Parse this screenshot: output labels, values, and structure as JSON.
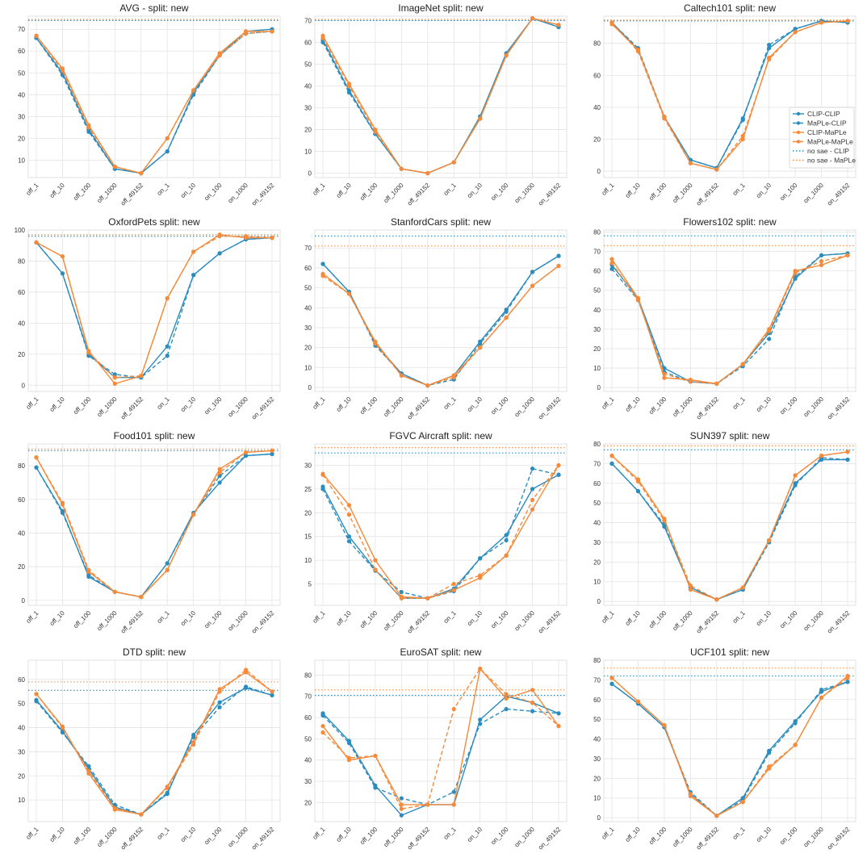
{
  "figure": {
    "x_categories": [
      "off_1",
      "off_10",
      "off_100",
      "off_1000",
      "off_49152",
      "on_1",
      "on_10",
      "on_100",
      "on_1000",
      "on_49152"
    ],
    "legend": {
      "entries": [
        {
          "label": "CLIP-CLIP",
          "style": "solid",
          "color": "#2b8cbe",
          "marker": true
        },
        {
          "label": "MaPLe-CLIP",
          "style": "dashed",
          "color": "#2b8cbe",
          "marker": true
        },
        {
          "label": "CLIP-MaPLe",
          "style": "solid",
          "color": "#f58a3a",
          "marker": true
        },
        {
          "label": "MaPLe-MaPLe",
          "style": "dashed",
          "color": "#f58a3a",
          "marker": true
        },
        {
          "label": "no sae - CLIP",
          "style": "dotted",
          "color": "#2b8cbe",
          "marker": false
        },
        {
          "label": "no sae - MaPLe",
          "style": "dotted",
          "color": "#f58a3a",
          "marker": false
        }
      ],
      "placement": "right, in Caltech101 panel"
    },
    "colors": {
      "clip": "#2b8cbe",
      "maple": "#f58a3a",
      "grid": "#e3e3e3"
    }
  },
  "chart_data": [
    {
      "type": "line",
      "title": "AVG - split: new",
      "ylim": [
        2,
        76
      ],
      "yticks": [
        10,
        20,
        30,
        40,
        50,
        60,
        70
      ],
      "series": [
        {
          "name": "CLIP-CLIP",
          "values": [
            66,
            50,
            24,
            6,
            4,
            14,
            41,
            58,
            69,
            70
          ]
        },
        {
          "name": "MaPLe-CLIP",
          "values": [
            66,
            49,
            23,
            6,
            4,
            14,
            40,
            58,
            68,
            69
          ]
        },
        {
          "name": "CLIP-MaPLe",
          "values": [
            67,
            52,
            26,
            7,
            4,
            20,
            42,
            59,
            69,
            69
          ]
        },
        {
          "name": "MaPLe-MaPLe",
          "values": [
            67,
            51,
            25,
            7,
            4,
            20,
            42,
            58,
            68,
            69
          ]
        }
      ],
      "baselines": {
        "no sae - CLIP": 74,
        "no sae - MaPLe": 74.5
      }
    },
    {
      "type": "line",
      "title": "ImageNet split: new",
      "ylim": [
        -2,
        72
      ],
      "yticks": [
        0,
        10,
        20,
        30,
        40,
        50,
        60,
        70
      ],
      "series": [
        {
          "name": "CLIP-CLIP",
          "values": [
            61,
            38,
            18,
            2,
            0,
            5,
            26,
            55,
            71,
            67
          ]
        },
        {
          "name": "MaPLe-CLIP",
          "values": [
            60,
            37,
            18,
            2,
            0,
            5,
            25,
            54,
            71,
            67
          ]
        },
        {
          "name": "CLIP-MaPLe",
          "values": [
            63,
            41,
            20,
            2,
            0,
            5,
            25,
            54,
            71,
            68
          ]
        },
        {
          "name": "MaPLe-MaPLe",
          "values": [
            62,
            40,
            19,
            2,
            0,
            5,
            25,
            54,
            71,
            68
          ]
        }
      ],
      "baselines": {
        "no sae - CLIP": 70,
        "no sae - MaPLe": 70.5
      }
    },
    {
      "type": "line",
      "title": "Caltech101 split: new",
      "ylim": [
        -4,
        97
      ],
      "yticks": [
        0,
        20,
        40,
        60,
        80
      ],
      "series": [
        {
          "name": "CLIP-CLIP",
          "values": [
            93,
            76,
            34,
            7,
            2,
            33,
            77,
            89,
            94,
            93
          ]
        },
        {
          "name": "MaPLe-CLIP",
          "values": [
            93,
            77,
            34,
            7,
            2,
            32,
            79,
            89,
            94,
            93
          ]
        },
        {
          "name": "CLIP-MaPLe",
          "values": [
            92,
            76,
            34,
            5,
            1,
            20,
            71,
            87,
            93,
            94
          ]
        },
        {
          "name": "MaPLe-MaPLe",
          "values": [
            93,
            75,
            33,
            5,
            1,
            22,
            70,
            87,
            93,
            94
          ]
        }
      ],
      "baselines": {
        "no sae - CLIP": 94,
        "no sae - MaPLe": 94.5
      }
    },
    {
      "type": "line",
      "title": "OxfordPets split: new",
      "ylim": [
        -4,
        100
      ],
      "yticks": [
        0,
        20,
        40,
        60,
        80,
        100
      ],
      "series": [
        {
          "name": "CLIP-CLIP",
          "values": [
            92,
            72,
            20,
            5,
            5,
            25,
            71,
            85,
            94,
            95
          ]
        },
        {
          "name": "MaPLe-CLIP",
          "values": [
            92,
            72,
            19,
            7,
            5,
            19,
            71,
            85,
            94,
            95
          ]
        },
        {
          "name": "CLIP-MaPLe",
          "values": [
            92,
            83,
            22,
            1,
            6,
            56,
            86,
            97,
            95,
            95
          ]
        },
        {
          "name": "MaPLe-MaPLe",
          "values": [
            92,
            83,
            21,
            5,
            6,
            56,
            86,
            96,
            96,
            95
          ]
        }
      ],
      "baselines": {
        "no sae - CLIP": 96,
        "no sae - MaPLe": 97
      }
    },
    {
      "type": "line",
      "title": "StanfordCars split: new",
      "ylim": [
        -2,
        79
      ],
      "yticks": [
        0,
        10,
        20,
        30,
        40,
        50,
        60,
        70
      ],
      "series": [
        {
          "name": "CLIP-CLIP",
          "values": [
            62,
            48,
            22,
            7,
            1,
            6,
            23,
            39,
            58,
            66
          ]
        },
        {
          "name": "MaPLe-CLIP",
          "values": [
            62,
            48,
            21,
            7,
            1,
            4,
            22,
            38,
            58,
            66
          ]
        },
        {
          "name": "CLIP-MaPLe",
          "values": [
            57,
            47,
            23,
            6,
            1,
            6,
            20,
            35,
            51,
            61
          ]
        },
        {
          "name": "MaPLe-MaPLe",
          "values": [
            56,
            47,
            22,
            6,
            1,
            5,
            20,
            35,
            51,
            61
          ]
        }
      ],
      "baselines": {
        "no sae - CLIP": 76,
        "no sae - MaPLe": 71
      }
    },
    {
      "type": "line",
      "title": "Flowers102 split: new",
      "ylim": [
        -2,
        81
      ],
      "yticks": [
        0,
        10,
        20,
        30,
        40,
        50,
        60,
        70,
        80
      ],
      "series": [
        {
          "name": "CLIP-CLIP",
          "values": [
            63,
            46,
            10,
            3,
            2,
            12,
            28,
            56,
            68,
            69
          ]
        },
        {
          "name": "MaPLe-CLIP",
          "values": [
            61,
            45,
            8,
            3,
            2,
            11,
            25,
            57,
            68,
            69
          ]
        },
        {
          "name": "CLIP-MaPLe",
          "values": [
            66,
            46,
            5,
            4,
            2,
            12,
            30,
            60,
            63,
            68
          ]
        },
        {
          "name": "MaPLe-MaPLe",
          "values": [
            64,
            45,
            7,
            3,
            2,
            12,
            29,
            59,
            65,
            68
          ]
        }
      ],
      "baselines": {
        "no sae - CLIP": 78,
        "no sae - MaPLe": 73
      }
    },
    {
      "type": "line",
      "title": "Food101 split: new",
      "ylim": [
        -3,
        93
      ],
      "yticks": [
        0,
        20,
        40,
        60,
        80
      ],
      "series": [
        {
          "name": "CLIP-CLIP",
          "values": [
            79,
            53,
            14,
            5,
            2,
            22,
            52,
            70,
            86,
            87
          ]
        },
        {
          "name": "MaPLe-CLIP",
          "values": [
            79,
            52,
            15,
            5,
            2,
            22,
            51,
            74,
            86,
            87
          ]
        },
        {
          "name": "CLIP-MaPLe",
          "values": [
            85,
            57,
            17,
            5,
            2,
            18,
            51,
            78,
            88,
            89
          ]
        },
        {
          "name": "MaPLe-MaPLe",
          "values": [
            85,
            58,
            18,
            5,
            2,
            18,
            51,
            76,
            88,
            89
          ]
        }
      ],
      "baselines": {
        "no sae - CLIP": 89,
        "no sae - MaPLe": 90
      }
    },
    {
      "type": "line",
      "title": "FGVC Aircraft split: new",
      "ylim": [
        0.5,
        34.5
      ],
      "yticks": [
        5,
        10,
        15,
        20,
        25,
        30
      ],
      "series": [
        {
          "name": "CLIP-CLIP",
          "values": [
            25.5,
            15,
            8,
            2,
            2,
            4,
            10.4,
            15.3,
            25,
            28
          ]
        },
        {
          "name": "MaPLe-CLIP",
          "values": [
            25,
            14,
            7.8,
            3.3,
            2,
            3.5,
            10.4,
            14.2,
            29.3,
            28
          ]
        },
        {
          "name": "CLIP-MaPLe",
          "values": [
            28.2,
            21.6,
            10,
            2.3,
            2,
            3.7,
            6.3,
            11,
            20.7,
            30
          ]
        },
        {
          "name": "MaPLe-MaPLe",
          "values": [
            28,
            19.6,
            8,
            2,
            2,
            5,
            6.8,
            11,
            22.7,
            30
          ]
        }
      ],
      "baselines": {
        "no sae - CLIP": 32.6,
        "no sae - MaPLe": 33.7
      }
    },
    {
      "type": "line",
      "title": "SUN397 split: new",
      "ylim": [
        -2,
        80
      ],
      "yticks": [
        0,
        10,
        20,
        30,
        40,
        50,
        60,
        70,
        80
      ],
      "series": [
        {
          "name": "CLIP-CLIP",
          "values": [
            70,
            56,
            38,
            7,
            1,
            6,
            31,
            60,
            72,
            72
          ]
        },
        {
          "name": "MaPLe-CLIP",
          "values": [
            70,
            56,
            39,
            7,
            1,
            6,
            30,
            59,
            73,
            72
          ]
        },
        {
          "name": "CLIP-MaPLe",
          "values": [
            74,
            62,
            42,
            6,
            1,
            7,
            31,
            64,
            74,
            76
          ]
        },
        {
          "name": "MaPLe-MaPLe",
          "values": [
            74,
            61,
            41,
            8,
            1,
            7,
            31,
            64,
            74,
            76
          ]
        }
      ],
      "baselines": {
        "no sae - CLIP": 77,
        "no sae - MaPLe": 79
      }
    },
    {
      "type": "line",
      "title": "DTD split: new",
      "ylim": [
        1,
        68
      ],
      "yticks": [
        10,
        20,
        30,
        40,
        50,
        60
      ],
      "series": [
        {
          "name": "CLIP-CLIP",
          "values": [
            51.5,
            38.5,
            23,
            7,
            4,
            12.5,
            37,
            50.5,
            56.5,
            53.5
          ]
        },
        {
          "name": "MaPLe-CLIP",
          "values": [
            51,
            38,
            24,
            8,
            4,
            13,
            36,
            48.5,
            57,
            53.5
          ]
        },
        {
          "name": "CLIP-MaPLe",
          "values": [
            54,
            40.5,
            21,
            6,
            4,
            15.5,
            34,
            56,
            63,
            55
          ]
        },
        {
          "name": "MaPLe-MaPLe",
          "values": [
            54,
            40,
            22,
            6.5,
            4,
            15,
            33,
            55,
            64,
            55
          ]
        }
      ],
      "baselines": {
        "no sae - CLIP": 55.5,
        "no sae - MaPLe": 59
      }
    },
    {
      "type": "line",
      "title": "EuroSAT split: new",
      "ylim": [
        11,
        87
      ],
      "yticks": [
        20,
        30,
        40,
        50,
        60,
        70,
        80
      ],
      "series": [
        {
          "name": "CLIP-CLIP",
          "values": [
            62,
            49,
            28,
            14,
            19,
            19,
            59,
            70,
            67,
            62
          ]
        },
        {
          "name": "MaPLe-CLIP",
          "values": [
            61,
            48,
            27,
            22,
            19,
            25,
            57,
            64,
            63,
            62
          ]
        },
        {
          "name": "CLIP-MaPLe",
          "values": [
            56,
            40,
            42,
            19,
            19,
            19,
            83,
            69,
            73,
            56
          ]
        },
        {
          "name": "MaPLe-MaPLe",
          "values": [
            53,
            41,
            42,
            17,
            19,
            64,
            83,
            71,
            67,
            56
          ]
        }
      ],
      "baselines": {
        "no sae - CLIP": 70.5,
        "no sae - MaPLe": 73
      }
    },
    {
      "type": "line",
      "title": "UCF101 split: new",
      "ylim": [
        -2,
        80
      ],
      "yticks": [
        0,
        10,
        20,
        30,
        40,
        50,
        60,
        70,
        80
      ],
      "series": [
        {
          "name": "CLIP-CLIP",
          "values": [
            68,
            58,
            46,
            12,
            1,
            10,
            34,
            49,
            64,
            69
          ]
        },
        {
          "name": "MaPLe-CLIP",
          "values": [
            68,
            58,
            46,
            13,
            1,
            9,
            33,
            48,
            65,
            69
          ]
        },
        {
          "name": "CLIP-MaPLe",
          "values": [
            71,
            59,
            47,
            11,
            1,
            8,
            25,
            37,
            61,
            72
          ]
        },
        {
          "name": "MaPLe-MaPLe",
          "values": [
            71,
            59,
            47,
            12,
            1,
            8,
            26,
            37,
            61,
            71
          ]
        }
      ],
      "baselines": {
        "no sae - CLIP": 72,
        "no sae - MaPLe": 76
      }
    }
  ]
}
